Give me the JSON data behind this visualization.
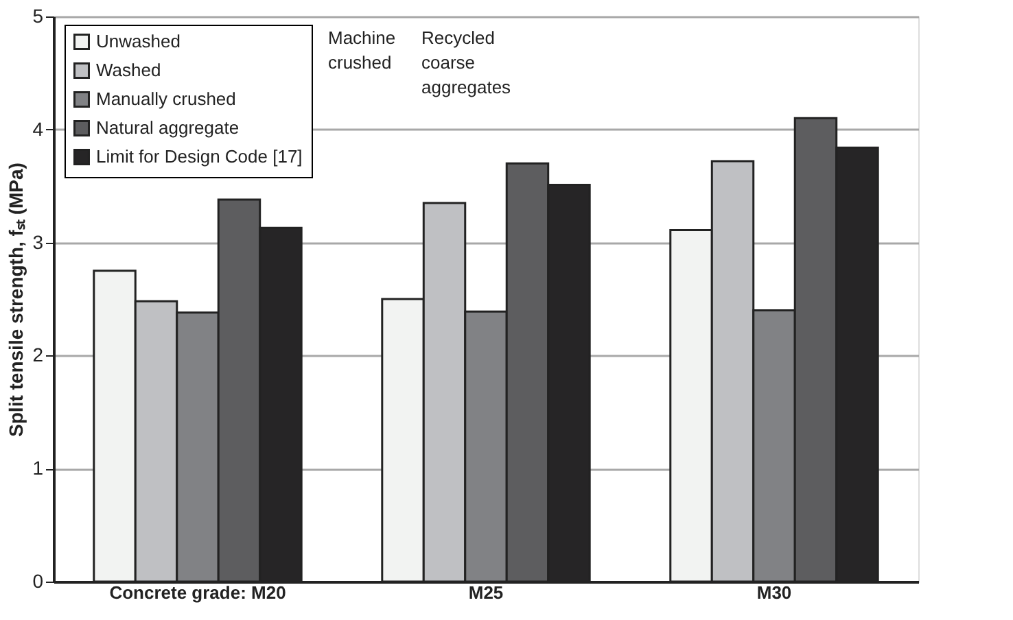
{
  "chart_data": {
    "type": "bar",
    "categories": [
      "Concrete grade: M20",
      "M25",
      "M30"
    ],
    "ylabel": "Split tensile strength, fₛₜ (MPa)",
    "ylim": [
      0,
      5
    ],
    "yticks": [
      0,
      1,
      2,
      3,
      4,
      5
    ],
    "grid": "y",
    "legend": "top left",
    "series": [
      {
        "name": "Unwashed",
        "color": "#f2f3f2",
        "values": [
          2.75,
          2.5,
          3.11
        ]
      },
      {
        "name": "Washed",
        "color": "#bfc0c3",
        "values": [
          2.48,
          3.35,
          3.72
        ]
      },
      {
        "name": "Manually crushed",
        "color": "#818285",
        "values": [
          2.38,
          2.39,
          2.4
        ]
      },
      {
        "name": "Natural aggregate",
        "color": "#5d5d5f",
        "values": [
          3.38,
          3.7,
          4.1
        ]
      },
      {
        "name": "Limit for Design Code [17]",
        "color": "#262526",
        "values": [
          3.13,
          3.51,
          3.84
        ]
      }
    ],
    "annotations": [
      "Machine",
      "crushed",
      "Recycled",
      "coarse",
      "aggregates"
    ]
  }
}
